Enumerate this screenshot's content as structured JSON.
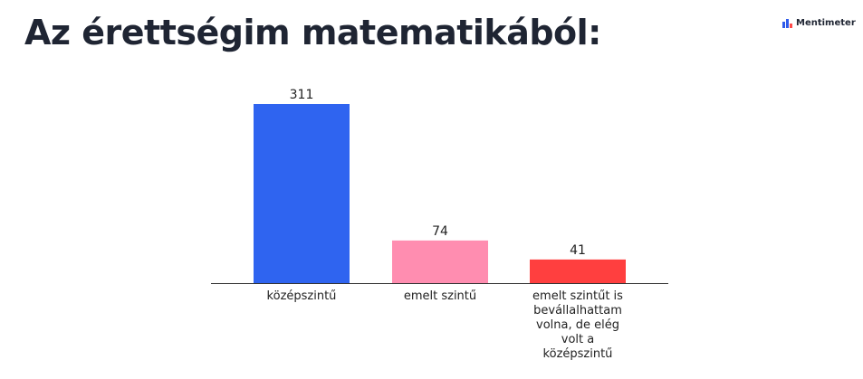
{
  "header": {
    "title": "Az érettségim matematikából:",
    "brand": "Mentimeter",
    "brand_icon": "mentimeter-logo-icon",
    "brand_colors": [
      "#2f5bea",
      "#ff4a4a"
    ]
  },
  "chart_data": {
    "type": "bar",
    "title": "Az érettségim matematikából:",
    "xlabel": "",
    "ylabel": "",
    "grid": false,
    "legend": "none",
    "ylim": [
      0,
      311
    ],
    "categories": [
      [
        "középszintű"
      ],
      [
        "emelt szintű"
      ],
      [
        "emelt szintűt is",
        "bevállalhattam",
        "volna, de elég",
        "volt a",
        "középszintű"
      ]
    ],
    "values": [
      311,
      74,
      41
    ],
    "colors": [
      "#2f64f0",
      "#ff8db0",
      "#ff3f3f"
    ],
    "axis_color": "#333333"
  }
}
